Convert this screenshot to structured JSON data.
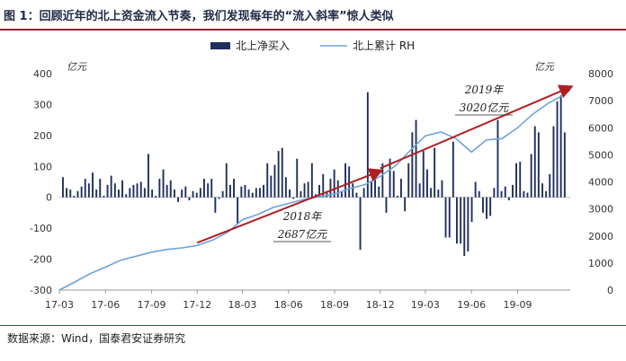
{
  "title": "图 1：回顾近年的北上资金流入节奏，我们发现每年的“流入斜率”惊人类似",
  "source": "数据来源：Wind，国泰君安证券研究",
  "chart_data": {
    "type": "bar+line",
    "legend": [
      {
        "name": "北上净买入",
        "kind": "bar",
        "color": "#1f2f5c"
      },
      {
        "name": "北上累计 RH",
        "kind": "line",
        "color": "#6fa3d8"
      }
    ],
    "left_unit": "亿元",
    "right_unit": "亿元",
    "ylim_left": [
      -300,
      400
    ],
    "ylim_right": [
      0,
      8000
    ],
    "left_ticks": [
      -300,
      -200,
      -100,
      0,
      100,
      200,
      300,
      400
    ],
    "right_ticks": [
      0,
      1000,
      2000,
      3000,
      4000,
      5000,
      6000,
      7000,
      8000
    ],
    "x_range": [
      "2017-03-01",
      "2019-12-15"
    ],
    "x_ticks": [
      {
        "label": "17-03",
        "date": "2017-03-01"
      },
      {
        "label": "17-06",
        "date": "2017-06-01"
      },
      {
        "label": "17-09",
        "date": "2017-09-01"
      },
      {
        "label": "17-12",
        "date": "2017-12-01"
      },
      {
        "label": "18-03",
        "date": "2018-03-01"
      },
      {
        "label": "18-06",
        "date": "2018-06-01"
      },
      {
        "label": "18-09",
        "date": "2018-09-01"
      },
      {
        "label": "18-12",
        "date": "2018-12-01"
      },
      {
        "label": "19-03",
        "date": "2019-03-01"
      },
      {
        "label": "19-06",
        "date": "2019-06-01"
      },
      {
        "label": "19-09",
        "date": "2019-09-01"
      }
    ],
    "bars_weekly": [
      65,
      30,
      25,
      5,
      20,
      35,
      60,
      45,
      80,
      25,
      60,
      5,
      40,
      70,
      45,
      25,
      55,
      10,
      30,
      40,
      45,
      50,
      30,
      140,
      25,
      5,
      60,
      90,
      40,
      55,
      25,
      -15,
      25,
      35,
      -10,
      20,
      15,
      30,
      60,
      45,
      60,
      -50,
      -5,
      20,
      110,
      40,
      60,
      -85,
      35,
      40,
      25,
      15,
      30,
      30,
      40,
      110,
      70,
      105,
      150,
      160,
      65,
      25,
      -5,
      125,
      20,
      45,
      50,
      110,
      10,
      40,
      75,
      20,
      60,
      90,
      55,
      20,
      110,
      100,
      45,
      15,
      -170,
      30,
      340,
      50,
      75,
      35,
      110,
      -50,
      125,
      85,
      5,
      60,
      -45,
      110,
      210,
      250,
      45,
      150,
      90,
      30,
      160,
      25,
      55,
      -130,
      -130,
      180,
      -150,
      -150,
      -190,
      -175,
      -80,
      50,
      20,
      -50,
      -70,
      -60,
      30,
      250,
      20,
      35,
      -10,
      40,
      110,
      115,
      20,
      15,
      140,
      230,
      210,
      45,
      20,
      75,
      230,
      310,
      330,
      210
    ],
    "cumulative": [
      [
        "2017-03-01",
        0
      ],
      [
        "2017-04-01",
        300
      ],
      [
        "2017-05-01",
        600
      ],
      [
        "2017-06-01",
        850
      ],
      [
        "2017-07-01",
        1100
      ],
      [
        "2017-08-01",
        1250
      ],
      [
        "2017-09-01",
        1400
      ],
      [
        "2017-10-01",
        1500
      ],
      [
        "2017-11-01",
        1560
      ],
      [
        "2017-12-01",
        1650
      ],
      [
        "2018-01-01",
        1850
      ],
      [
        "2018-02-01",
        2150
      ],
      [
        "2018-03-01",
        2600
      ],
      [
        "2018-04-01",
        2800
      ],
      [
        "2018-05-01",
        3050
      ],
      [
        "2018-06-01",
        3200
      ],
      [
        "2018-07-01",
        3350
      ],
      [
        "2018-08-01",
        3450
      ],
      [
        "2018-09-01",
        3550
      ],
      [
        "2018-10-01",
        3750
      ],
      [
        "2018-11-01",
        3900
      ],
      [
        "2018-12-01",
        4200
      ],
      [
        "2019-01-01",
        4600
      ],
      [
        "2019-02-01",
        5200
      ],
      [
        "2019-03-01",
        5700
      ],
      [
        "2019-04-01",
        5850
      ],
      [
        "2019-05-01",
        5600
      ],
      [
        "2019-06-01",
        5100
      ],
      [
        "2019-07-01",
        5550
      ],
      [
        "2019-08-01",
        5600
      ],
      [
        "2019-09-01",
        6000
      ],
      [
        "2019-10-01",
        6500
      ],
      [
        "2019-11-01",
        6900
      ],
      [
        "2019-12-01",
        7200
      ],
      [
        "2019-12-15",
        7400
      ]
    ],
    "arrows": [
      {
        "from": [
          "2017-12-01",
          1750
        ],
        "to": [
          "2018-12-01",
          4400
        ]
      },
      {
        "from": [
          "2018-12-01",
          4500
        ],
        "to": [
          "2019-12-15",
          7500
        ]
      }
    ],
    "annotations": [
      {
        "text_line1": "2018年",
        "text_line2": "2687亿元",
        "anchor": "below-first-arrow"
      },
      {
        "text_line1": "2019年",
        "text_line2": "3020亿元",
        "anchor": "above-second-arrow"
      }
    ]
  }
}
